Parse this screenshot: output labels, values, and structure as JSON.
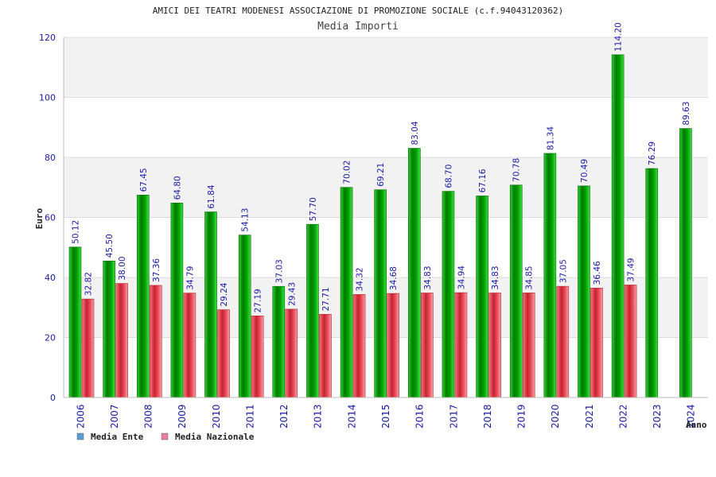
{
  "chart_data": {
    "type": "bar",
    "title": "AMICI DEI TEATRI MODENESI ASSOCIAZIONE DI PROMOZIONE SOCIALE (c.f.94043120362)",
    "subtitle": "Media Importi",
    "xlabel": "Anno",
    "ylabel": "Euro",
    "ylim": [
      0,
      120
    ],
    "yticks": [
      0,
      20,
      40,
      60,
      80,
      100,
      120
    ],
    "grid": true,
    "legend_placement": "bottom-left",
    "categories": [
      "2006",
      "2007",
      "2008",
      "2009",
      "2010",
      "2011",
      "2012",
      "2013",
      "2014",
      "2015",
      "2016",
      "2017",
      "2018",
      "2019",
      "2020",
      "2021",
      "2022",
      "2023",
      "2024"
    ],
    "series": [
      {
        "name": "Media Ente",
        "color": "#00aa00",
        "legend_color": "#5b9bd5",
        "values": [
          50.12,
          45.5,
          67.45,
          64.8,
          61.84,
          54.13,
          37.03,
          57.7,
          70.02,
          69.21,
          83.04,
          68.7,
          67.16,
          70.78,
          81.34,
          70.49,
          114.2,
          76.29,
          89.63
        ],
        "labels": [
          "50.12",
          "45.50",
          "67.45",
          "64.80",
          "61.84",
          "54.13",
          "37.03",
          "57.70",
          "70.02",
          "69.21",
          "83.04",
          "68.70",
          "67.16",
          "70.78",
          "81.34",
          "70.49",
          "114.20",
          "76.29",
          "89.63"
        ]
      },
      {
        "name": "Media Nazionale",
        "color": "#e8404f",
        "legend_color": "#e87aa0",
        "values": [
          32.82,
          38.0,
          37.36,
          34.79,
          29.24,
          27.19,
          29.43,
          27.71,
          34.32,
          34.68,
          34.83,
          34.94,
          34.83,
          34.85,
          37.05,
          36.46,
          37.49,
          null,
          null
        ],
        "labels": [
          "32.82",
          "38.00",
          "37.36",
          "34.79",
          "29.24",
          "27.19",
          "29.43",
          "27.71",
          "34.32",
          "34.68",
          "34.83",
          "34.94",
          "34.83",
          "34.85",
          "37.05",
          "36.46",
          "37.49",
          null,
          null
        ]
      }
    ]
  }
}
